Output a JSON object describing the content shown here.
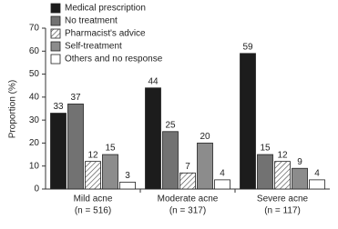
{
  "chart_data": {
    "type": "bar",
    "y_label": "Proportion (%)",
    "categories": [
      "Mild acne",
      "Moderate acne",
      "Severe acne"
    ],
    "category_notes": [
      "(n = 516)",
      "(n = 317)",
      "(n = 117)"
    ],
    "series": [
      {
        "name": "Medical prescription",
        "color": "#1c1c1c",
        "values": [
          33,
          44,
          59
        ]
      },
      {
        "name": "No treatment",
        "color": "#727272",
        "values": [
          37,
          25,
          15
        ]
      },
      {
        "name": "Pharmacist's advice",
        "color": "#ffffff",
        "hatch": true,
        "values": [
          12,
          7,
          12
        ]
      },
      {
        "name": "Self-treatment",
        "color": "#8c8c8c",
        "values": [
          15,
          20,
          9
        ]
      },
      {
        "name": "Others and no response",
        "color": "#ffffff",
        "values": [
          3,
          4,
          4
        ]
      }
    ],
    "ylim": [
      0,
      70
    ],
    "yticks": [
      0,
      10,
      20,
      30,
      40,
      50,
      60,
      70
    ],
    "grid": false,
    "legend": "top-left"
  }
}
